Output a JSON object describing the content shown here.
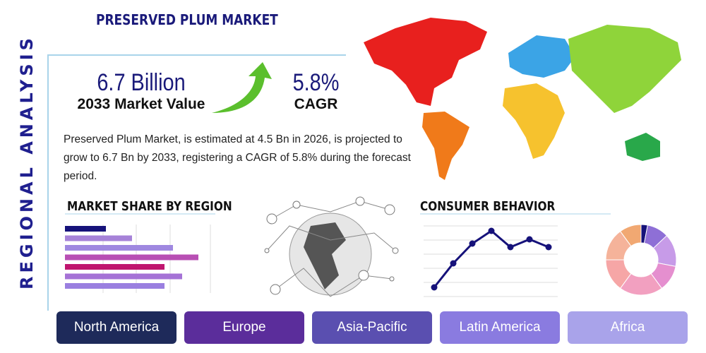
{
  "header": {
    "title": "PRESERVED PLUM MARKET"
  },
  "side_label": "REGIONAL ANALYSIS",
  "stats": {
    "value": "6.7 Billion",
    "value_caption": "2033 Market Value",
    "cagr": "5.8%",
    "cagr_caption": "CAGR"
  },
  "description": "Preserved Plum Market, is estimated at 4.5 Bn in 2026, is projected to grow to 6.7 Bn by 2033, registering a CAGR of 5.8% during the forecast period.",
  "market_share": {
    "type": "bar",
    "title": "MARKET SHARE BY REGION",
    "xlim": [
      0,
      210
    ],
    "values": [
      58,
      95,
      153,
      189,
      141,
      166,
      141
    ],
    "colors": [
      "#16127a",
      "#a682d8",
      "#9f88e0",
      "#b84fb4",
      "#c0156f",
      "#a572d6",
      "#9a7fe0"
    ]
  },
  "consumer_behavior": {
    "type": "line",
    "title": "CONSUMER BEHAVIOR",
    "ylim": [
      0,
      100
    ],
    "color": "#16127a",
    "values": [
      13,
      47,
      75,
      93,
      70,
      81,
      70
    ]
  },
  "donut": {
    "type": "pie",
    "values": [
      3,
      10,
      15,
      12,
      20,
      15,
      15,
      10
    ],
    "colors": [
      "#16127a",
      "#8e6fd6",
      "#c79be8",
      "#e58fcf",
      "#f2a0c0",
      "#f6a6a6",
      "#f5b39a",
      "#f1a872"
    ]
  },
  "regions": [
    {
      "label": "North America",
      "color": "#1e2a5a"
    },
    {
      "label": "Europe",
      "color": "#5b2d9b"
    },
    {
      "label": "Asia-Pacific",
      "color": "#5a4fb0"
    },
    {
      "label": "Latin America",
      "color": "#8a7be0"
    },
    {
      "label": "Africa",
      "color": "#a9a3ea"
    }
  ]
}
